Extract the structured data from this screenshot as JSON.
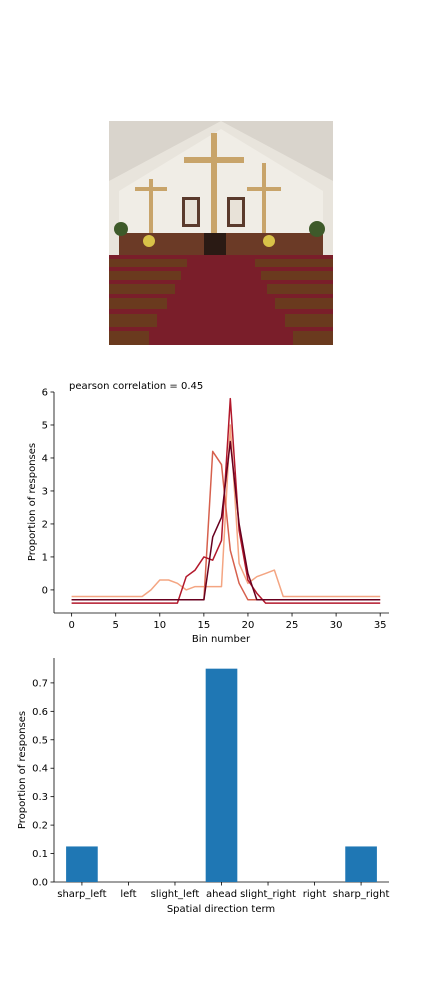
{
  "image": {
    "description_icon": "church-interior-photo"
  },
  "chart_data": [
    {
      "type": "line",
      "annotation": "pearson correlation = 0.45",
      "xlabel": "Bin number",
      "ylabel": "Proportion of responses",
      "xlim": [
        -2,
        36
      ],
      "ylim": [
        -0.7,
        6
      ],
      "xticks": [
        0,
        5,
        10,
        15,
        20,
        25,
        30,
        35
      ],
      "yticks": [
        0,
        1,
        2,
        3,
        4,
        5,
        6
      ],
      "x": [
        0,
        1,
        2,
        3,
        4,
        5,
        6,
        7,
        8,
        9,
        10,
        11,
        12,
        13,
        14,
        15,
        16,
        17,
        18,
        19,
        20,
        21,
        22,
        23,
        24,
        25,
        26,
        27,
        28,
        29,
        30,
        31,
        32,
        33,
        34,
        35
      ],
      "series": [
        {
          "color": "#f4a582",
          "values": [
            -0.2,
            -0.2,
            -0.2,
            -0.2,
            -0.2,
            -0.2,
            -0.2,
            -0.2,
            -0.2,
            0.0,
            0.3,
            0.3,
            0.2,
            0.0,
            0.1,
            0.1,
            0.1,
            0.1,
            5.0,
            0.8,
            0.2,
            0.4,
            0.5,
            0.6,
            -0.2,
            -0.2,
            -0.2,
            -0.2,
            -0.2,
            -0.2,
            -0.2,
            -0.2,
            -0.2,
            -0.2,
            -0.2,
            -0.2
          ]
        },
        {
          "color": "#d6604d",
          "values": [
            -0.3,
            -0.3,
            -0.3,
            -0.3,
            -0.3,
            -0.3,
            -0.3,
            -0.3,
            -0.3,
            -0.3,
            -0.3,
            -0.3,
            -0.3,
            -0.3,
            -0.3,
            -0.3,
            4.2,
            3.8,
            1.2,
            0.2,
            -0.3,
            -0.3,
            -0.3,
            -0.3,
            -0.3,
            -0.3,
            -0.3,
            -0.3,
            -0.3,
            -0.3,
            -0.3,
            -0.3,
            -0.3,
            -0.3,
            -0.3,
            -0.3
          ]
        },
        {
          "color": "#b2182b",
          "values": [
            -0.4,
            -0.4,
            -0.4,
            -0.4,
            -0.4,
            -0.4,
            -0.4,
            -0.4,
            -0.4,
            -0.4,
            -0.4,
            -0.4,
            -0.4,
            0.4,
            0.6,
            1.0,
            0.9,
            1.5,
            5.8,
            1.8,
            0.3,
            -0.1,
            -0.4,
            -0.4,
            -0.4,
            -0.4,
            -0.4,
            -0.4,
            -0.4,
            -0.4,
            -0.4,
            -0.4,
            -0.4,
            -0.4,
            -0.4,
            -0.4
          ]
        },
        {
          "color": "#67001f",
          "values": [
            -0.3,
            -0.3,
            -0.3,
            -0.3,
            -0.3,
            -0.3,
            -0.3,
            -0.3,
            -0.3,
            -0.3,
            -0.3,
            -0.3,
            -0.3,
            -0.3,
            -0.3,
            -0.3,
            1.6,
            2.2,
            4.5,
            2.0,
            0.5,
            -0.3,
            -0.3,
            -0.3,
            -0.3,
            -0.3,
            -0.3,
            -0.3,
            -0.3,
            -0.3,
            -0.3,
            -0.3,
            -0.3,
            -0.3,
            -0.3,
            -0.3
          ]
        }
      ]
    },
    {
      "type": "bar",
      "xlabel": "Spatial direction term",
      "ylabel": "Proportion of responses",
      "categories": [
        "sharp_left",
        "left",
        "slight_left",
        "ahead",
        "slight_right",
        "right",
        "sharp_right"
      ],
      "values": [
        0.125,
        0.0,
        0.0,
        0.75,
        0.0,
        0.0,
        0.125
      ],
      "ylim": [
        0,
        0.7875
      ],
      "yticks": [
        "0.0",
        "0.1",
        "0.2",
        "0.3",
        "0.4",
        "0.5",
        "0.6",
        "0.7"
      ],
      "bar_color": "#1f77b4"
    }
  ]
}
